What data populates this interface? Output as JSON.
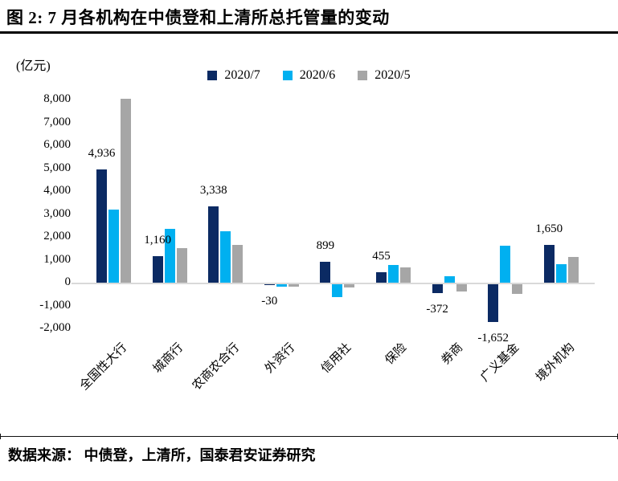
{
  "header": {
    "title": "图 2:  7 月各机构在中债登和上清所总托管量的变动"
  },
  "footer": {
    "source": "数据来源：  中债登，上清所，国泰君安证券研究"
  },
  "chart_data": {
    "type": "bar",
    "title": "7 月各机构在中债登和上清所总托管量的变动",
    "unit_label": "(亿元)",
    "categories": [
      "全国性大行",
      "城商行",
      "农商农合行",
      "外资行",
      "信用社",
      "保险",
      "券商",
      "广义基金",
      "境外机构"
    ],
    "series": [
      {
        "name": "2020/7",
        "color": "#0B2A63",
        "values": [
          4936,
          1160,
          3338,
          -30,
          899,
          455,
          -372,
          -1652,
          1650
        ],
        "labels": [
          "4,936",
          "1,160",
          "3,338",
          "-30",
          "899",
          "455",
          "-372",
          "-1,652",
          "1,650"
        ]
      },
      {
        "name": "2020/6",
        "color": "#00B0F0",
        "values": [
          3200,
          2350,
          2250,
          -100,
          -570,
          760,
          280,
          1600,
          820
        ]
      },
      {
        "name": "2020/5",
        "color": "#A6A6A6",
        "values": [
          8050,
          1520,
          1660,
          -100,
          -150,
          670,
          -300,
          -420,
          1140
        ]
      }
    ],
    "ylim": [
      -2000,
      8000
    ],
    "ytick_step": 1000,
    "ytick_labels": [
      "8,000",
      "7,000",
      "6,000",
      "5,000",
      "4,000",
      "3,000",
      "2,000",
      "1,000",
      "0",
      "-1,000",
      "-2,000"
    ],
    "legend_position": "top-center",
    "grid": false,
    "zero_line_color": "#D9D9D9"
  }
}
